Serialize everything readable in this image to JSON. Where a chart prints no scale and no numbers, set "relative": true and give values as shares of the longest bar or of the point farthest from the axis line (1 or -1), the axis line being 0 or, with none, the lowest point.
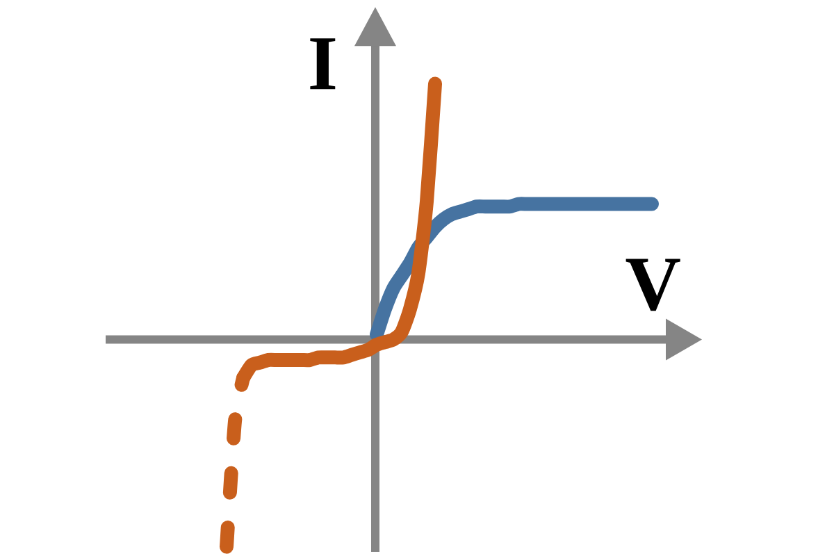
{
  "chart_data": {
    "type": "line",
    "xlabel": "V",
    "ylabel": "I",
    "relative": true,
    "categories": [
      null,
      null,
      null,
      null,
      null,
      null,
      null,
      null,
      null,
      null,
      null,
      null,
      null,
      null,
      null,
      null,
      null,
      null,
      null,
      null,
      null,
      null,
      null,
      null,
      null,
      null,
      null,
      null,
      null,
      null,
      null,
      null,
      null,
      null,
      null,
      null,
      null,
      null,
      null,
      null,
      null,
      null,
      null,
      null,
      null,
      null,
      null,
      null,
      null,
      null,
      null,
      null
    ],
    "series": [
      {
        "color": "#4673a1",
        "values": [
          null,
          null,
          null,
          null,
          null,
          null,
          null,
          null,
          null,
          null,
          null,
          null,
          null,
          null,
          null,
          null,
          null,
          null,
          0.02,
          0.12,
          0.2,
          0.25,
          0.3,
          0.36,
          0.4,
          0.44,
          0.47,
          0.49,
          0.5,
          0.51,
          0.52,
          0.52,
          0.52,
          0.52,
          0.52,
          0.53,
          0.53,
          0.53,
          0.53,
          0.53,
          0.53,
          0.53,
          0.53,
          0.53,
          0.53,
          0.53,
          0.53,
          0.53,
          0.53,
          0.53,
          0.53,
          0.53
        ]
      },
      {
        "color": "#c95f1c",
        "line_style": "dashed",
        "values": [
          -0.81,
          -0.32,
          -0.15,
          null,
          null,
          null,
          null,
          null,
          null,
          null,
          null,
          null,
          null,
          null,
          null,
          null,
          null,
          null,
          null,
          null,
          null,
          null,
          null,
          null,
          null,
          null,
          null,
          null,
          null,
          null,
          null,
          null,
          null,
          null,
          null,
          null,
          null,
          null,
          null,
          null,
          null,
          null,
          null,
          null,
          null,
          null,
          null,
          null,
          null,
          null,
          null,
          null
        ]
      },
      {
        "color": "#c95f1c",
        "values": [
          null,
          null,
          -0.15,
          -0.1,
          -0.09,
          -0.08,
          -0.08,
          -0.08,
          -0.08,
          -0.08,
          -0.08,
          -0.07,
          -0.07,
          -0.07,
          -0.07,
          -0.06,
          -0.05,
          -0.04,
          -0.02,
          -0.01,
          0,
          0.03,
          0.12,
          0.26,
          0.54,
          1.0,
          null,
          null,
          null,
          null,
          null,
          null,
          null,
          null,
          null,
          null,
          null,
          null,
          null,
          null,
          null,
          null,
          null,
          null,
          null,
          null,
          null,
          null,
          null,
          null,
          null,
          null
        ]
      }
    ]
  }
}
